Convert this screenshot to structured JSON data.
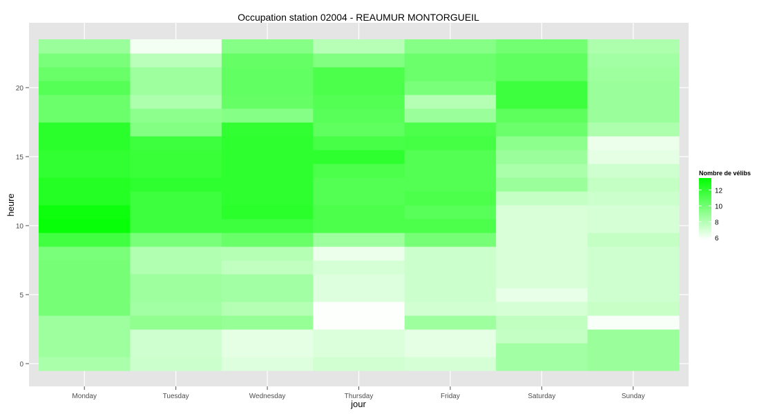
{
  "chart_data": {
    "type": "heatmap",
    "title": "Occupation station 02004 - REAUMUR MONTORGUEIL",
    "xlabel": "jour",
    "ylabel": "heure",
    "categories": [
      "Monday",
      "Tuesday",
      "Wednesday",
      "Thursday",
      "Friday",
      "Saturday",
      "Sunday"
    ],
    "hours": [
      0,
      1,
      2,
      3,
      4,
      5,
      6,
      7,
      8,
      9,
      10,
      11,
      12,
      13,
      14,
      15,
      16,
      17,
      18,
      19,
      20,
      21,
      22,
      23
    ],
    "y_ticks": [
      0,
      5,
      10,
      15,
      20
    ],
    "ylim": [
      -0.5,
      23.5
    ],
    "grid": true,
    "legend": {
      "title": "Nombre de vélibs",
      "ticks": [
        6,
        8,
        10,
        12
      ],
      "min": 5.7,
      "max": 13.5,
      "position": "right"
    },
    "colors": {
      "low": "#ffffff",
      "high": "#00ff00",
      "panel": "#e5e5e5",
      "grid": "#ffffff"
    },
    "values": [
      [
        8.3,
        8.7,
        8.7,
        8.7,
        9.9,
        9.9,
        9.9,
        9.9,
        9.8,
        11.5,
        13.3,
        13.1,
        12.4,
        12.4,
        12.0,
        12.0,
        12.2,
        12.2,
        10.2,
        10.2,
        10.9,
        10.3,
        9.8,
        8.8
      ],
      [
        7.3,
        7.2,
        7.2,
        9.1,
        8.5,
        8.7,
        8.7,
        8.1,
        8.1,
        9.8,
        11.6,
        11.6,
        11.6,
        12.1,
        11.8,
        11.8,
        11.6,
        9.5,
        9.2,
        8.2,
        8.7,
        8.7,
        7.8,
        6.1
      ],
      [
        6.7,
        6.5,
        6.5,
        8.9,
        8.0,
        8.5,
        8.5,
        7.6,
        8.0,
        10.3,
        11.6,
        12.2,
        12.1,
        12.1,
        12.1,
        12.1,
        12.1,
        12.0,
        9.4,
        10.4,
        10.5,
        10.5,
        10.4,
        9.4
      ],
      [
        7.1,
        6.8,
        6.8,
        5.8,
        5.8,
        6.7,
        6.7,
        7.0,
        6.3,
        8.7,
        11.2,
        11.2,
        11.0,
        11.0,
        11.2,
        12.1,
        11.3,
        10.6,
        10.8,
        11.0,
        11.2,
        11.2,
        9.6,
        7.9
      ],
      [
        7.0,
        6.5,
        6.5,
        8.7,
        7.1,
        7.3,
        7.3,
        7.3,
        7.3,
        9.9,
        11.2,
        10.8,
        11.2,
        11.0,
        11.0,
        11.0,
        11.4,
        11.2,
        8.8,
        8.0,
        9.8,
        10.2,
        10.2,
        9.4
      ],
      [
        8.5,
        8.5,
        7.5,
        7.6,
        7.0,
        6.4,
        6.9,
        6.9,
        6.9,
        6.9,
        6.9,
        6.9,
        7.5,
        8.8,
        8.3,
        8.8,
        9.2,
        10.2,
        10.7,
        11.6,
        11.6,
        10.6,
        10.6,
        10.0
      ],
      [
        8.8,
        8.8,
        8.8,
        5.9,
        7.4,
        7.2,
        7.2,
        7.2,
        7.2,
        7.5,
        7.0,
        7.0,
        7.3,
        7.5,
        7.2,
        6.5,
        6.3,
        8.2,
        8.8,
        8.8,
        8.8,
        8.7,
        8.5,
        8.2
      ]
    ]
  }
}
